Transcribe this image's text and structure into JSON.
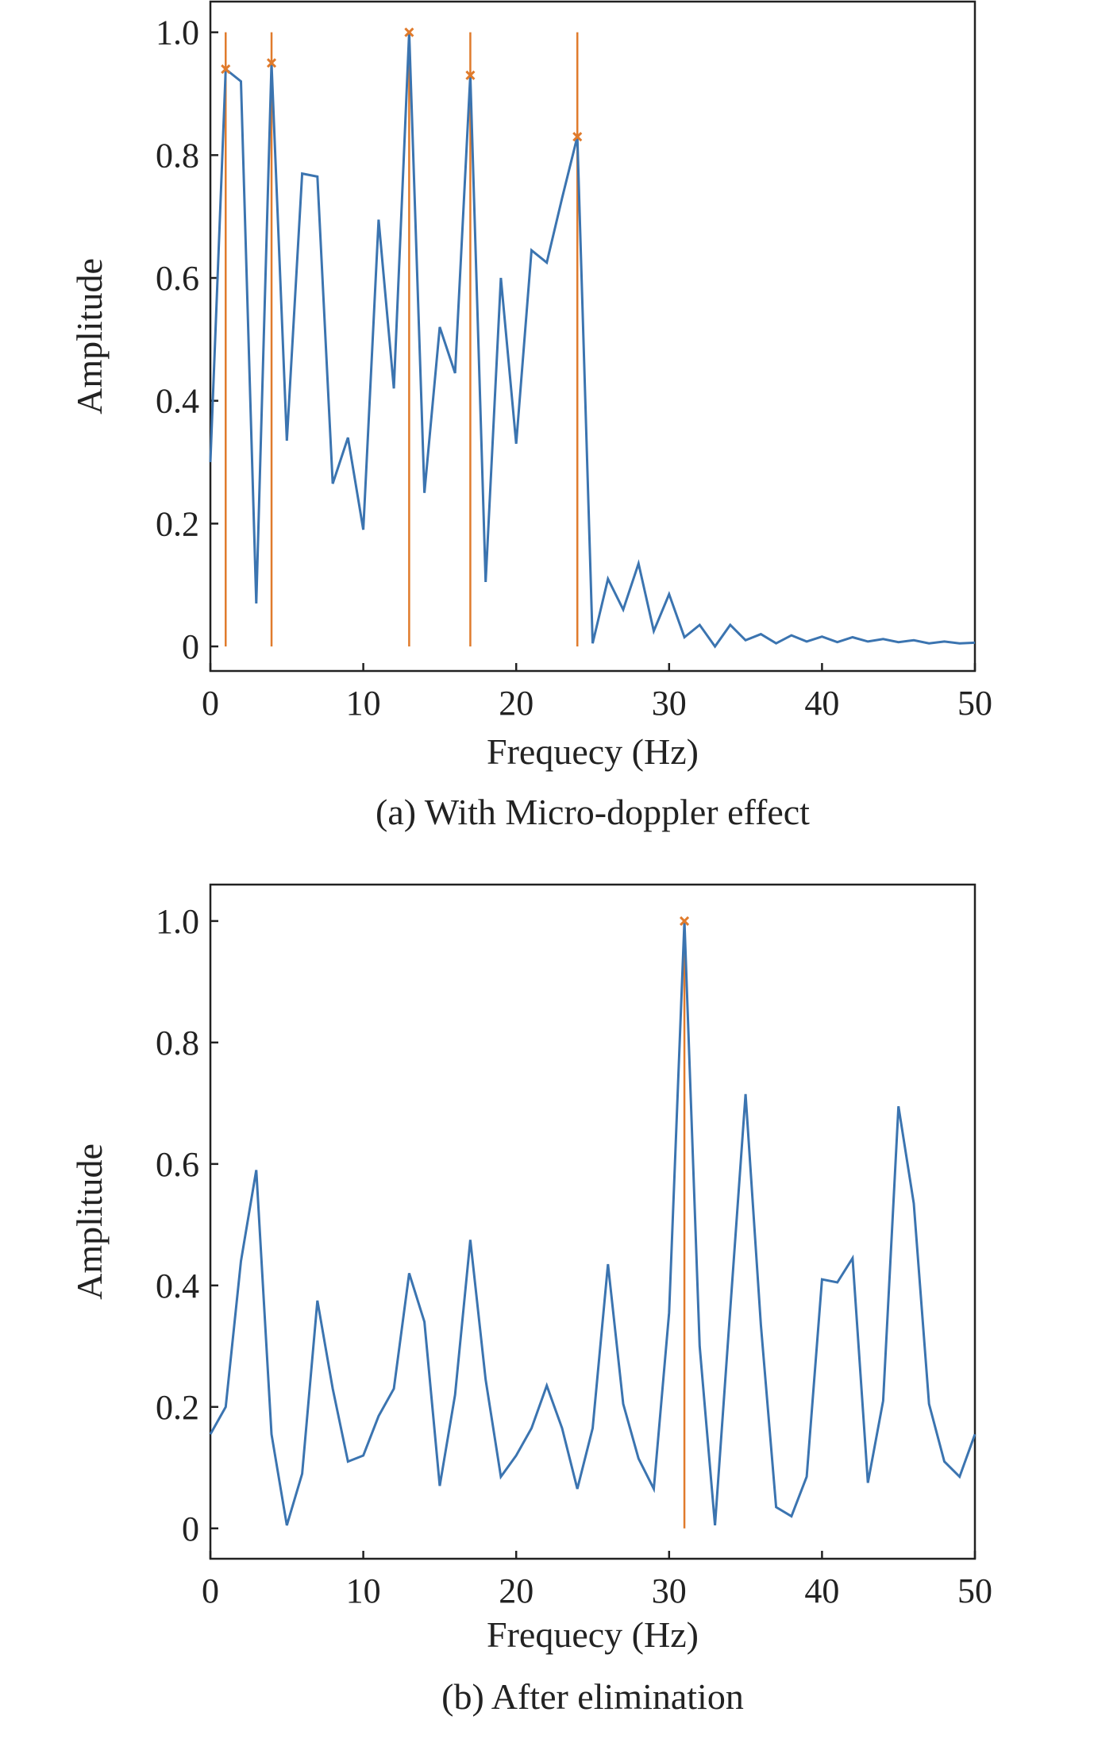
{
  "colors": {
    "signal": "#3b74b0",
    "peak": "#e07b2c",
    "axis": "#222222"
  },
  "chart_data": [
    {
      "type": "line",
      "caption": "(a) With Micro-doppler effect",
      "xlabel": "Frequecy (Hz)",
      "ylabel": "Amplitude",
      "xlim": [
        0,
        50
      ],
      "ylim": [
        -0.04,
        1.05
      ],
      "xticks": [
        0,
        10,
        20,
        30,
        40,
        50
      ],
      "xtick_labels": [
        "0",
        "10",
        "20",
        "30",
        "40",
        "50"
      ],
      "yticks": [
        0,
        0.2,
        0.4,
        0.6,
        0.8,
        1.0
      ],
      "ytick_labels": [
        "0",
        "0.2",
        "0.4",
        "0.6",
        "0.8",
        "1.0"
      ],
      "grid": false,
      "series": [
        {
          "x": [
            0,
            1,
            2,
            3,
            4,
            5,
            6,
            7,
            8,
            9,
            10,
            11,
            12,
            13,
            14,
            15,
            16,
            17,
            18,
            19,
            20,
            21,
            22,
            23,
            24,
            25,
            26,
            27,
            28,
            29,
            30,
            31,
            32,
            33,
            34,
            35,
            36,
            37,
            38,
            39,
            40,
            41,
            42,
            43,
            44,
            45,
            46,
            47,
            48,
            49,
            50
          ],
          "y": [
            0.3,
            0.94,
            0.92,
            0.07,
            0.95,
            0.335,
            0.77,
            0.765,
            0.265,
            0.34,
            0.19,
            0.695,
            0.42,
            1.0,
            0.25,
            0.52,
            0.445,
            0.93,
            0.105,
            0.6,
            0.33,
            0.645,
            0.625,
            0.73,
            0.83,
            0.005,
            0.11,
            0.06,
            0.135,
            0.025,
            0.085,
            0.015,
            0.035,
            0.0,
            0.035,
            0.01,
            0.02,
            0.005,
            0.018,
            0.008,
            0.016,
            0.007,
            0.015,
            0.008,
            0.012,
            0.007,
            0.01,
            0.005,
            0.008,
            0.005,
            0.006
          ]
        }
      ],
      "peaks": [
        {
          "x": 1,
          "y": 0.94
        },
        {
          "x": 4,
          "y": 0.95
        },
        {
          "x": 13,
          "y": 1.0
        },
        {
          "x": 17,
          "y": 0.93
        },
        {
          "x": 24,
          "y": 0.83
        }
      ],
      "peak_line_top": 1.0
    },
    {
      "type": "line",
      "caption": "(b) After elimination",
      "xlabel": "Frequecy (Hz)",
      "ylabel": "Amplitude",
      "xlim": [
        0,
        50
      ],
      "ylim": [
        -0.05,
        1.06
      ],
      "xticks": [
        0,
        10,
        20,
        30,
        40,
        50
      ],
      "xtick_labels": [
        "0",
        "10",
        "20",
        "30",
        "40",
        "50"
      ],
      "yticks": [
        0,
        0.2,
        0.4,
        0.6,
        0.8,
        1.0
      ],
      "ytick_labels": [
        "0",
        "0.2",
        "0.4",
        "0.6",
        "0.8",
        "1.0"
      ],
      "grid": false,
      "series": [
        {
          "x": [
            0,
            1,
            2,
            3,
            4,
            5,
            6,
            7,
            8,
            9,
            10,
            11,
            12,
            13,
            14,
            15,
            16,
            17,
            18,
            19,
            20,
            21,
            22,
            23,
            24,
            25,
            26,
            27,
            28,
            29,
            30,
            31,
            32,
            33,
            34,
            35,
            36,
            37,
            38,
            39,
            40,
            41,
            42,
            43,
            44,
            45,
            46,
            47,
            48,
            49,
            50
          ],
          "y": [
            0.155,
            0.2,
            0.44,
            0.59,
            0.155,
            0.005,
            0.09,
            0.375,
            0.23,
            0.11,
            0.12,
            0.185,
            0.23,
            0.42,
            0.34,
            0.07,
            0.22,
            0.475,
            0.245,
            0.085,
            0.12,
            0.165,
            0.235,
            0.165,
            0.065,
            0.165,
            0.435,
            0.205,
            0.115,
            0.065,
            0.355,
            1.0,
            0.3,
            0.005,
            0.36,
            0.715,
            0.335,
            0.035,
            0.02,
            0.085,
            0.41,
            0.405,
            0.445,
            0.075,
            0.21,
            0.695,
            0.535,
            0.205,
            0.11,
            0.085,
            0.155
          ]
        }
      ],
      "peaks": [
        {
          "x": 31,
          "y": 1.0
        }
      ],
      "peak_line_top": 1.0
    }
  ]
}
